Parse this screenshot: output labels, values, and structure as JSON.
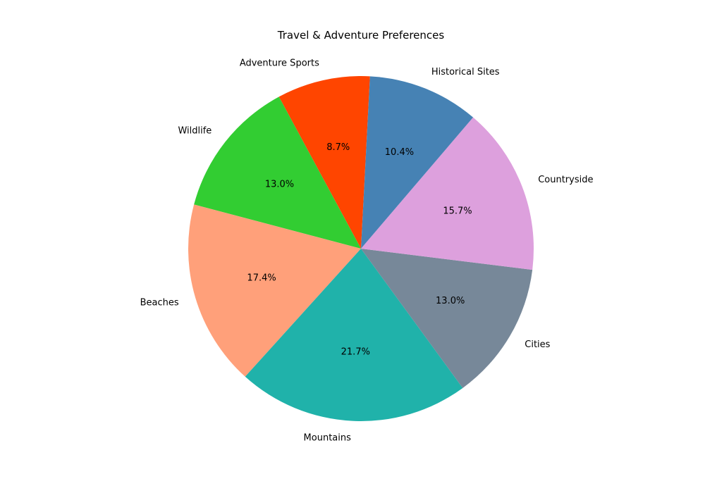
{
  "chart_data": {
    "type": "pie",
    "title": "Travel & Adventure Preferences",
    "start_angle_deg": 87,
    "direction": "counterclockwise",
    "slices": [
      {
        "label": "Adventure Sports",
        "value": 8.7,
        "pct_text": "8.7%",
        "color": "#ff4500"
      },
      {
        "label": "Wildlife",
        "value": 13.0,
        "pct_text": "13.0%",
        "color": "#32cd32"
      },
      {
        "label": "Beaches",
        "value": 17.4,
        "pct_text": "17.4%",
        "color": "#ffa07a"
      },
      {
        "label": "Mountains",
        "value": 21.7,
        "pct_text": "21.7%",
        "color": "#20b2aa"
      },
      {
        "label": "Cities",
        "value": 13.0,
        "pct_text": "13.0%",
        "color": "#778899"
      },
      {
        "label": "Countryside",
        "value": 15.7,
        "pct_text": "15.7%",
        "color": "#dda0dd"
      },
      {
        "label": "Historical Sites",
        "value": 10.4,
        "pct_text": "10.4%",
        "color": "#4682b4"
      }
    ]
  }
}
